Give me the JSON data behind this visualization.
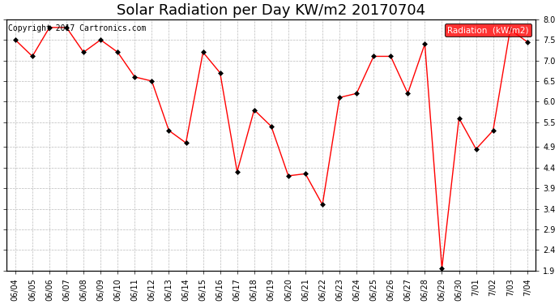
{
  "title": "Solar Radiation per Day KW/m2 20170704",
  "copyright_text": "Copyright 2017 Cartronics.com",
  "legend_label": "Radiation  (kW/m2)",
  "dates": [
    "06/04",
    "06/05",
    "06/06",
    "06/07",
    "06/08",
    "06/09",
    "06/10",
    "06/11",
    "06/12",
    "06/13",
    "06/14",
    "06/15",
    "06/16",
    "06/17",
    "06/18",
    "06/19",
    "06/20",
    "06/21",
    "06/22",
    "06/23",
    "06/24",
    "06/25",
    "06/26",
    "06/27",
    "06/28",
    "06/29",
    "06/30",
    "7/01",
    "7/02",
    "7/03",
    "7/04"
  ],
  "values": [
    7.5,
    7.1,
    7.8,
    7.8,
    7.2,
    7.5,
    7.2,
    6.6,
    6.5,
    5.3,
    5.0,
    7.2,
    6.7,
    4.3,
    5.8,
    5.4,
    4.2,
    4.25,
    3.5,
    6.1,
    6.2,
    7.1,
    7.1,
    6.2,
    7.4,
    1.95,
    5.6,
    4.85,
    5.3,
    7.75,
    7.45
  ],
  "line_color": "red",
  "marker_color": "black",
  "bg_color": "white",
  "grid_color": "#bbbbbb",
  "legend_bg": "red",
  "legend_text_color": "white",
  "ylim_min": 1.9,
  "ylim_max": 8.0,
  "ytick_labels": [
    "1.9",
    "2.4",
    "2.9",
    "3.4",
    "3.9",
    "4.4",
    "4.9",
    "5.5",
    "6.0",
    "6.5",
    "7.0",
    "7.5",
    "8.0"
  ],
  "ytick_values": [
    1.9,
    2.4,
    2.9,
    3.4,
    3.9,
    4.4,
    4.9,
    5.5,
    6.0,
    6.5,
    7.0,
    7.5,
    8.0
  ],
  "title_fontsize": 13,
  "axis_fontsize": 7,
  "copyright_fontsize": 7,
  "figwidth": 6.9,
  "figheight": 3.75,
  "dpi": 100
}
